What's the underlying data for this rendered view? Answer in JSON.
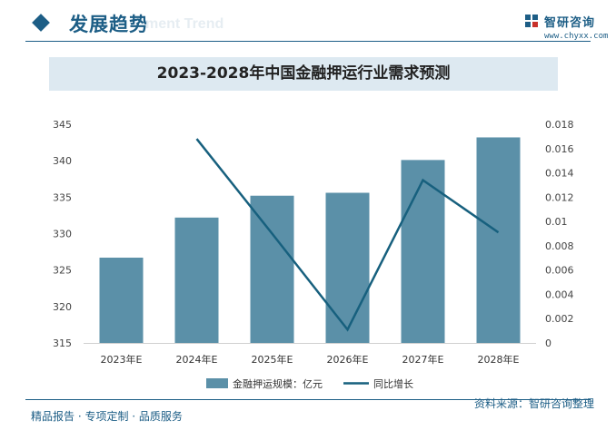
{
  "header": {
    "title": "发展趋势",
    "ghost_text": "ment Trend"
  },
  "logo": {
    "name": "智研咨询",
    "url": "www.chyxx.com"
  },
  "footer": {
    "left_text": "精品报告 · 专项定制 · 品质服务",
    "source_text": "资料来源：智研咨询整理"
  },
  "colors": {
    "brand": "#1d5e86",
    "bar": "#5b90a8",
    "line": "#17607e",
    "banner_bg": "#dde9f1"
  },
  "chart_data": {
    "type": "bar",
    "title": "2023-2028年中国金融押运行业需求预测",
    "categories": [
      "2023年E",
      "2024年E",
      "2025年E",
      "2026年E",
      "2027年E",
      "2028年E"
    ],
    "series": [
      {
        "name": "金融押运规模：亿元",
        "type": "bar",
        "axis": "left",
        "values": [
          326.7,
          332.2,
          335.2,
          335.6,
          340.1,
          343.2
        ]
      },
      {
        "name": "同比增长",
        "type": "line",
        "axis": "right",
        "values": [
          null,
          0.0168,
          0.009,
          0.0011,
          0.0134,
          0.0091
        ]
      }
    ],
    "left_axis": {
      "ylim": [
        315,
        345
      ],
      "ticks": [
        "315",
        "320",
        "325",
        "330",
        "335",
        "340",
        "345"
      ]
    },
    "right_axis": {
      "ylim": [
        0,
        0.018
      ],
      "ticks": [
        "0",
        "0.002",
        "0.004",
        "0.006",
        "0.008",
        "0.01",
        "0.012",
        "0.014",
        "0.016",
        "0.018"
      ]
    },
    "grid": false,
    "legend_position": "bottom"
  }
}
